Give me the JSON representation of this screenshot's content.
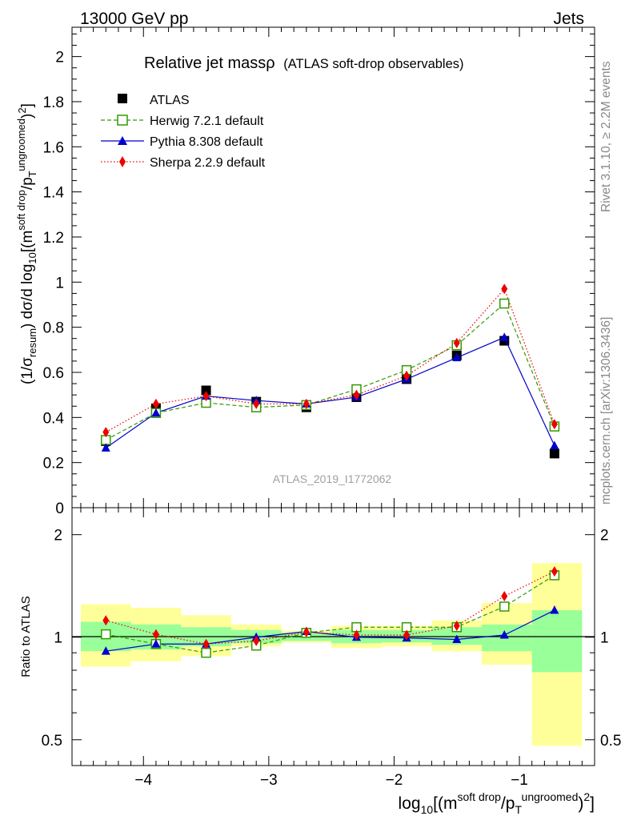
{
  "header": {
    "beam_label": "13000 GeV pp",
    "process_label": "Jets"
  },
  "side_text": {
    "rivet": "Rivet 3.1.10, ≥ 2.2M events",
    "mcplots": "mcplots.cern.ch [arXiv:1306.3436]"
  },
  "watermark": "ATLAS_2019_I1772062",
  "chart_data": {
    "type": "line",
    "title_main": "Relative jet massρ",
    "title_sub": "(ATLAS soft-drop observables)",
    "xlabel": "log10[(m^{soft drop}/p_T^{ungroomed})^2]",
    "ylabel": "(1/σ_resum) dσ/d log10[(m^{soft drop}/p_T^{ungroomed})^2]",
    "ratio_ylabel": "Ratio to ATLAS",
    "xlim": [
      -4.57,
      -0.4
    ],
    "ylim": [
      0,
      2.13
    ],
    "ratio_ylim": [
      0.42,
      2.4
    ],
    "x_ticks": [
      -4,
      -3,
      -2,
      -1
    ],
    "x_tick_labels": [
      "−4",
      "−3",
      "−2",
      "−1"
    ],
    "y_ticks": [
      0,
      0.2,
      0.4,
      0.6,
      0.8,
      1,
      1.2,
      1.4,
      1.6,
      1.8,
      2
    ],
    "y_tick_labels": [
      "0",
      "0.2",
      "0.4",
      "0.6",
      "0.8",
      "1",
      "1.2",
      "1.4",
      "1.6",
      "1.8",
      "2"
    ],
    "ratio_ticks": [
      0.5,
      1,
      2
    ],
    "ratio_tick_labels": [
      "0.5",
      "1",
      "2"
    ],
    "bin_edges": [
      -4.5,
      -4.1,
      -3.7,
      -3.3,
      -2.9,
      -2.5,
      -2.1,
      -1.7,
      -1.3,
      -0.9,
      -0.5
    ],
    "x": [
      -4.3,
      -3.9,
      -3.5,
      -3.1,
      -2.7,
      -2.3,
      -1.9,
      -1.5,
      -1.12,
      -0.72
    ],
    "data": {
      "name": "ATLAS",
      "values": [
        0.295,
        0.44,
        0.52,
        0.47,
        0.445,
        0.49,
        0.57,
        0.675,
        0.74,
        0.24
      ],
      "ratio_band_inner": [
        [
          0.91,
          1.11
        ],
        [
          0.92,
          1.09
        ],
        [
          0.94,
          1.07
        ],
        [
          0.96,
          1.05
        ],
        [
          0.975,
          1.03
        ],
        [
          0.96,
          1.05
        ],
        [
          0.965,
          1.05
        ],
        [
          0.95,
          1.07
        ],
        [
          0.91,
          1.09
        ],
        [
          0.79,
          1.2
        ]
      ],
      "ratio_band_outer": [
        [
          0.82,
          1.25
        ],
        [
          0.85,
          1.22
        ],
        [
          0.88,
          1.16
        ],
        [
          0.94,
          1.09
        ],
        [
          0.965,
          1.045
        ],
        [
          0.93,
          1.08
        ],
        [
          0.94,
          1.08
        ],
        [
          0.91,
          1.12
        ],
        [
          0.83,
          1.26
        ],
        [
          0.48,
          1.65
        ]
      ]
    },
    "series": [
      {
        "name": "Herwig 7.2.1 default",
        "color": "#339900",
        "marker": "open-square",
        "dash": "dashed",
        "values": [
          0.3,
          0.42,
          0.465,
          0.445,
          0.455,
          0.525,
          0.61,
          0.72,
          0.905,
          0.36
        ],
        "ratio": [
          1.02,
          0.955,
          0.9,
          0.945,
          1.03,
          1.07,
          1.07,
          1.07,
          1.23,
          1.52
        ]
      },
      {
        "name": "Pythia 8.308 default",
        "color": "#0000cc",
        "marker": "filled-triangle",
        "dash": "solid",
        "values": [
          0.265,
          0.42,
          0.495,
          0.475,
          0.46,
          0.49,
          0.57,
          0.665,
          0.755,
          0.275
        ],
        "ratio": [
          0.91,
          0.955,
          0.955,
          1.0,
          1.04,
          1.0,
          0.995,
          0.985,
          1.015,
          1.2
        ]
      },
      {
        "name": "Sherpa 2.2.9 default",
        "color": "#ee0000",
        "marker": "filled-diamond",
        "dash": "dotted",
        "values": [
          0.335,
          0.46,
          0.495,
          0.46,
          0.46,
          0.5,
          0.585,
          0.73,
          0.97,
          0.37
        ],
        "ratio": [
          1.12,
          1.02,
          0.955,
          0.975,
          1.035,
          1.015,
          1.015,
          1.08,
          1.32,
          1.56
        ]
      }
    ]
  },
  "colors": {
    "band_inner": "#99ff99",
    "band_outer": "#ffff99",
    "axis": "#000000",
    "watermark": "#a0a0a0",
    "side_text": "#888888"
  }
}
